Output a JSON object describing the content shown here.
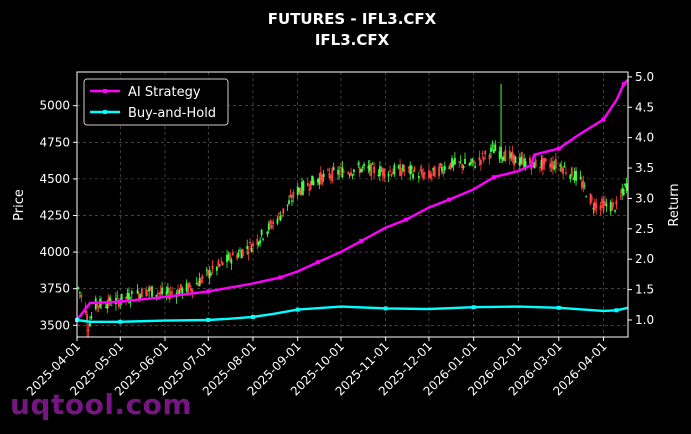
{
  "watermark": "uqtool.com",
  "colors": {
    "background": "#000000",
    "ai_strategy": "#ff00ff",
    "buy_and_hold": "#00ffff",
    "candle_up": "#44ff44",
    "candle_down": "#ff4444",
    "grid": "#666666",
    "text": "#ffffff"
  },
  "chart_data": {
    "type": "candlestick_with_lines",
    "title": "FUTURES - IFL3.CFX",
    "subtitle": "IFL3.CFX",
    "ylabel": "Price",
    "ylabel_right": "Return",
    "ylim": [
      3420,
      5230
    ],
    "ylim_right": [
      0.72,
      5.08
    ],
    "yticks": [
      3500,
      3750,
      4000,
      4250,
      4500,
      4750,
      5000
    ],
    "yticks_right": [
      "1.0",
      "1.5",
      "2.0",
      "2.5",
      "3.0",
      "3.5",
      "4.0",
      "4.5",
      "5.0"
    ],
    "x_range": [
      "2025-04-01",
      "2026-04-18"
    ],
    "xticks": [
      "2025-04-01",
      "2025-05-01",
      "2025-06-01",
      "2025-07-01",
      "2025-08-01",
      "2025-09-01",
      "2025-10-01",
      "2025-11-01",
      "2025-12-01",
      "2026-01-01",
      "2026-02-01",
      "2026-03-01",
      "2026-04-01"
    ],
    "grid": true,
    "legend_position": "upper-left",
    "series": [
      {
        "name": "AI Strategy",
        "points": [
          [
            "2025-04-01",
            1.0
          ],
          [
            "2025-04-10",
            1.28
          ],
          [
            "2025-05-01",
            1.3
          ],
          [
            "2025-06-01",
            1.38
          ],
          [
            "2025-07-01",
            1.47
          ],
          [
            "2025-08-01",
            1.6
          ],
          [
            "2025-08-20",
            1.7
          ],
          [
            "2025-09-01",
            1.8
          ],
          [
            "2025-09-15",
            1.95
          ],
          [
            "2025-10-01",
            2.12
          ],
          [
            "2025-10-15",
            2.3
          ],
          [
            "2025-11-01",
            2.52
          ],
          [
            "2025-11-15",
            2.65
          ],
          [
            "2025-12-01",
            2.85
          ],
          [
            "2025-12-15",
            2.98
          ],
          [
            "2026-01-01",
            3.15
          ],
          [
            "2026-01-15",
            3.35
          ],
          [
            "2026-02-01",
            3.45
          ],
          [
            "2026-02-10",
            3.55
          ],
          [
            "2026-02-12",
            3.72
          ],
          [
            "2026-03-01",
            3.82
          ],
          [
            "2026-03-15",
            4.05
          ],
          [
            "2026-04-01",
            4.3
          ],
          [
            "2026-04-10",
            4.62
          ],
          [
            "2026-04-15",
            4.88
          ],
          [
            "2026-04-18",
            4.95
          ]
        ]
      },
      {
        "name": "Buy-and-Hold",
        "points": [
          [
            "2025-04-01",
            1.0
          ],
          [
            "2025-04-10",
            0.97
          ],
          [
            "2025-05-01",
            0.97
          ],
          [
            "2025-06-01",
            0.99
          ],
          [
            "2025-07-01",
            1.0
          ],
          [
            "2025-07-15",
            1.02
          ],
          [
            "2025-08-01",
            1.05
          ],
          [
            "2025-08-15",
            1.1
          ],
          [
            "2025-09-01",
            1.17
          ],
          [
            "2025-10-01",
            1.22
          ],
          [
            "2025-11-01",
            1.19
          ],
          [
            "2025-12-01",
            1.18
          ],
          [
            "2026-01-01",
            1.21
          ],
          [
            "2026-02-01",
            1.22
          ],
          [
            "2026-03-01",
            1.2
          ],
          [
            "2026-04-01",
            1.15
          ],
          [
            "2026-04-10",
            1.16
          ],
          [
            "2026-04-18",
            1.2
          ]
        ]
      }
    ],
    "price_path": [
      [
        "2025-04-01",
        3780
      ],
      [
        "2025-04-07",
        3620
      ],
      [
        "2025-04-09",
        3500
      ],
      [
        "2025-04-14",
        3640
      ],
      [
        "2025-05-01",
        3670
      ],
      [
        "2025-05-20",
        3740
      ],
      [
        "2025-06-01",
        3710
      ],
      [
        "2025-06-20",
        3760
      ],
      [
        "2025-07-01",
        3850
      ],
      [
        "2025-07-15",
        3950
      ],
      [
        "2025-08-01",
        4050
      ],
      [
        "2025-08-20",
        4250
      ],
      [
        "2025-09-01",
        4420
      ],
      [
        "2025-09-15",
        4500
      ],
      [
        "2025-10-01",
        4550
      ],
      [
        "2025-10-15",
        4570
      ],
      [
        "2025-11-01",
        4550
      ],
      [
        "2025-11-15",
        4560
      ],
      [
        "2025-12-01",
        4520
      ],
      [
        "2025-12-15",
        4600
      ],
      [
        "2026-01-01",
        4600
      ],
      [
        "2026-01-15",
        4700
      ],
      [
        "2026-02-01",
        4620
      ],
      [
        "2026-02-15",
        4600
      ],
      [
        "2026-03-01",
        4600
      ],
      [
        "2026-03-15",
        4500
      ],
      [
        "2026-03-25",
        4330
      ],
      [
        "2026-04-10",
        4310
      ],
      [
        "2026-04-18",
        4480
      ]
    ],
    "price_spikes": [
      [
        "2026-01-20",
        5150
      ],
      [
        "2025-04-08",
        3420
      ]
    ]
  }
}
